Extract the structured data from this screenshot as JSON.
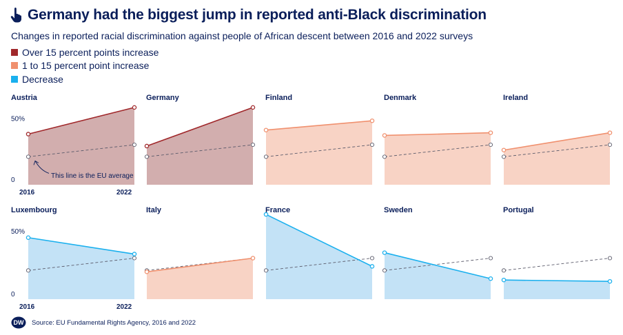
{
  "header": {
    "title": "Germany had the biggest jump in reported anti-Black discrimination",
    "subtitle": "Changes in reported racial discrimination against people of African descent between 2016 and 2022 surveys"
  },
  "legend": [
    {
      "label": "Over 15 percent points increase",
      "color": "#a0282b"
    },
    {
      "label": "1 to 15 percent point increase",
      "color": "#f0906e"
    },
    {
      "label": "Decrease",
      "color": "#1ab0ee"
    }
  ],
  "colors": {
    "eu_line": "#5a5a6a",
    "fill_dark_red": "#d2aeae",
    "fill_light_orange": "#f8d3c5",
    "fill_blue": "#c3e2f6"
  },
  "chart_data": {
    "type": "area",
    "x": [
      "2016",
      "2022"
    ],
    "ylim": [
      0,
      60
    ],
    "y_ticks": [
      {
        "value": 0,
        "label": "0"
      },
      {
        "value": 50,
        "label": "50%"
      }
    ],
    "eu_average": [
      21,
      30
    ],
    "annotation": "This line is the EU average",
    "panels": [
      {
        "country": "Austria",
        "values": [
          38,
          58
        ],
        "category": "over15"
      },
      {
        "country": "Germany",
        "values": [
          29,
          58
        ],
        "category": "over15"
      },
      {
        "country": "Finland",
        "values": [
          41,
          48
        ],
        "category": "1to15"
      },
      {
        "country": "Denmark",
        "values": [
          37,
          39
        ],
        "category": "1to15"
      },
      {
        "country": "Ireland",
        "values": [
          26,
          39
        ],
        "category": "1to15"
      },
      {
        "country": "Luxembourg",
        "values": [
          45,
          33
        ],
        "category": "decrease"
      },
      {
        "country": "Italy",
        "values": [
          20,
          30
        ],
        "category": "1to15"
      },
      {
        "country": "France",
        "values": [
          62,
          24
        ],
        "category": "decrease"
      },
      {
        "country": "Sweden",
        "values": [
          34,
          15
        ],
        "category": "decrease"
      },
      {
        "country": "Portugal",
        "values": [
          14,
          13
        ],
        "category": "decrease"
      }
    ]
  },
  "footer": {
    "logo_text": "DW",
    "source": "Source: EU Fundamental Rights Agency, 2016 and 2022"
  }
}
